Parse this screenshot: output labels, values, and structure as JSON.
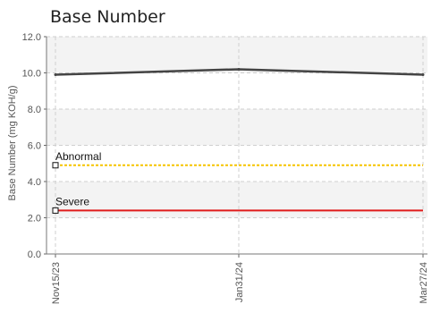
{
  "chart_data": {
    "type": "line",
    "title": "Base Number",
    "ylabel": "Base Number (mg KOH/g)",
    "xlabel": "",
    "ylim": [
      0,
      12
    ],
    "yticks": [
      "0.0",
      "2.0",
      "4.0",
      "6.0",
      "8.0",
      "10.0",
      "12.0"
    ],
    "x": [
      "Nov15/23",
      "Jan31/24",
      "Mar27/24"
    ],
    "series": [
      {
        "name": "",
        "color": "#444444",
        "values": [
          9.9,
          10.2,
          9.9
        ]
      }
    ],
    "thresholds": [
      {
        "label": "Abnormal",
        "value": 4.9,
        "color": "#f5c400"
      },
      {
        "label": "Severe",
        "value": 2.4,
        "color": "#e01c1c"
      }
    ],
    "grid": true,
    "band_shading": true
  }
}
